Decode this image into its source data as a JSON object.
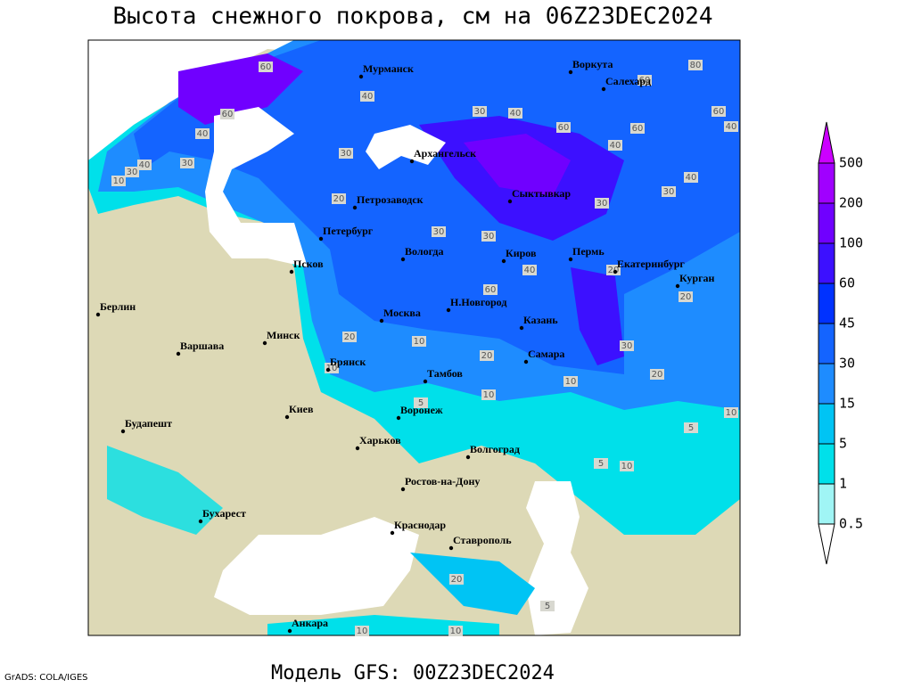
{
  "title": "Высота снежного покрова, см на 06Z23DEC2024",
  "subtitle": "Модель GFS: 00Z23DEC2024",
  "credit": "GrADS: COLA/IGES",
  "legend": {
    "levels": [
      0.5,
      1,
      5,
      15,
      30,
      45,
      60,
      100,
      200,
      500
    ],
    "colors": [
      "#ffffff",
      "#a0f5f5",
      "#00e0ea",
      "#00c4f4",
      "#1e8cff",
      "#1464ff",
      "#0032ff",
      "#3c10ff",
      "#7000ff",
      "#a000ff",
      "#cc00ff"
    ]
  },
  "cities": [
    "Мурманск",
    "Воркута",
    "Салехард",
    "Архангельск",
    "Сыктывкар",
    "Петрозаводск",
    "Петербург",
    "Вологда",
    "Киров",
    "Пермь",
    "Екатеринбург",
    "Курган",
    "Псков",
    "Берлин",
    "Н.Новгород",
    "Казань",
    "Москва",
    "Минск",
    "Варшава",
    "Самара",
    "Брянск",
    "Тамбов",
    "Воронеж",
    "Киев",
    "Будапешт",
    "Харьков",
    "Волгоград",
    "Ростов-на-Дону",
    "Бухарест",
    "Краснодар",
    "Ставрополь",
    "Анкара"
  ],
  "contour_labels": [
    "60",
    "40",
    "60",
    "40",
    "30",
    "40",
    "30",
    "10",
    "30",
    "20",
    "30",
    "40",
    "60",
    "40",
    "60",
    "80",
    "60",
    "60",
    "40",
    "30",
    "40",
    "30",
    "30",
    "30",
    "40",
    "60",
    "20",
    "20",
    "20",
    "10",
    "10",
    "20",
    "10",
    "30",
    "20",
    "10",
    "10",
    "5",
    "5",
    "10",
    "5",
    "10",
    "20",
    "5",
    "10"
  ]
}
